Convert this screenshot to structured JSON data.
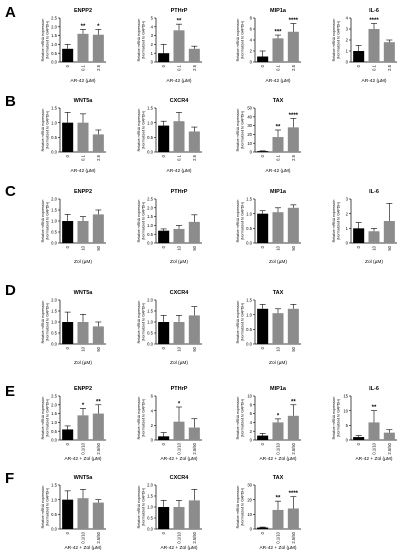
{
  "bar_colors": {
    "control": "#000000",
    "treated": "#8c8c8c",
    "row_c_third": "#8c8c8c"
  },
  "panel_labels": [
    "A",
    "B",
    "C",
    "D",
    "E",
    "F"
  ],
  "ylabel_line1": "Relative mRNA expression",
  "ylabel_line2": "(Normalized to GAPDH)",
  "chart_data": [
    {
      "type": "bar",
      "panel": "A",
      "title": "ENPP2",
      "categories": [
        "0",
        "0.1",
        "2.5"
      ],
      "values": [
        0.75,
        1.6,
        1.55
      ],
      "errors": [
        0.25,
        0.25,
        0.3
      ],
      "significance": [
        "",
        "**",
        "*"
      ],
      "xlabel": "AR-42 (µM)",
      "ylim": [
        0,
        2.5
      ],
      "yticks": [
        "0.0",
        "0.5",
        "1.0",
        "1.5",
        "2.0",
        "2.5"
      ],
      "colors": [
        "control",
        "treated",
        "treated"
      ]
    },
    {
      "type": "bar",
      "panel": "A",
      "title": "PTHrP",
      "categories": [
        "0",
        "0.1",
        "2.5"
      ],
      "values": [
        1.0,
        3.6,
        1.5
      ],
      "errors": [
        1.0,
        0.7,
        0.3
      ],
      "significance": [
        "",
        "**",
        ""
      ],
      "xlabel": "AR-42 (µM)",
      "ylim": [
        0,
        5
      ],
      "yticks": [
        "0",
        "1",
        "2",
        "3",
        "4",
        "5"
      ],
      "colors": [
        "control",
        "treated",
        "treated"
      ]
    },
    {
      "type": "bar",
      "panel": "A",
      "title": "MIP1a",
      "categories": [
        "0",
        "0.1",
        "2.5"
      ],
      "values": [
        1.0,
        4.3,
        5.5
      ],
      "errors": [
        1.0,
        0.6,
        1.5
      ],
      "significance": [
        "",
        "***",
        "****"
      ],
      "xlabel": "AR-42 (µM)",
      "ylim": [
        0,
        8
      ],
      "yticks": [
        "0",
        "2",
        "4",
        "6",
        "8"
      ],
      "colors": [
        "control",
        "treated",
        "treated"
      ]
    },
    {
      "type": "bar",
      "panel": "A",
      "title": "IL-6",
      "categories": [
        "0",
        "0.1",
        "2.5"
      ],
      "values": [
        1.0,
        3.0,
        1.8
      ],
      "errors": [
        0.5,
        0.5,
        0.2
      ],
      "significance": [
        "",
        "****",
        ""
      ],
      "xlabel": "AR-42 (µM)",
      "ylim": [
        0,
        4
      ],
      "yticks": [
        "0",
        "1",
        "2",
        "3",
        "4"
      ],
      "colors": [
        "control",
        "treated",
        "treated"
      ]
    },
    {
      "type": "bar",
      "panel": "B",
      "title": "WNT5a",
      "categories": [
        "0",
        "0.1",
        "2.5"
      ],
      "values": [
        1.0,
        1.0,
        0.6
      ],
      "errors": [
        0.35,
        0.3,
        0.15
      ],
      "significance": [
        "",
        "",
        ""
      ],
      "xlabel": "AR-42 (µM)",
      "ylim": [
        0,
        1.5
      ],
      "yticks": [
        "0.0",
        "0.5",
        "1.0",
        "1.5"
      ],
      "colors": [
        "control",
        "treated",
        "treated"
      ]
    },
    {
      "type": "bar",
      "panel": "B",
      "title": "CXCR4",
      "categories": [
        "0",
        "0.1",
        "2.5"
      ],
      "values": [
        0.9,
        1.05,
        0.7
      ],
      "errors": [
        0.15,
        0.3,
        0.15
      ],
      "significance": [
        "",
        "",
        ""
      ],
      "xlabel": "AR-42 (µM)",
      "ylim": [
        0,
        1.5
      ],
      "yticks": [
        "0.0",
        "0.5",
        "1.0",
        "1.5"
      ],
      "colors": [
        "control",
        "treated",
        "treated"
      ]
    },
    {
      "type": "bar",
      "panel": "B",
      "title": "TAX",
      "categories": [
        "0",
        "0.1",
        "2.5"
      ],
      "values": [
        1.0,
        17,
        28
      ],
      "errors": [
        0.3,
        8,
        10
      ],
      "significance": [
        "",
        "**",
        "****"
      ],
      "xlabel": "AR-42 (µM)",
      "ylim": [
        0,
        50
      ],
      "yticks": [
        "0",
        "10",
        "20",
        "30",
        "40",
        "50"
      ],
      "colors": [
        "control",
        "treated",
        "treated"
      ]
    },
    {
      "type": "bar",
      "panel": "C",
      "title": "ENPP2",
      "categories": [
        "0",
        "10",
        "50"
      ],
      "values": [
        1.0,
        1.0,
        1.3
      ],
      "errors": [
        0.3,
        0.2,
        0.2
      ],
      "significance": [
        "",
        "",
        ""
      ],
      "xlabel": "Zol (µM)",
      "ylim": [
        0,
        2.0
      ],
      "yticks": [
        "0.0",
        "0.5",
        "1.0",
        "1.5",
        "2.0"
      ],
      "colors": [
        "control",
        "treated",
        "row_c_third"
      ]
    },
    {
      "type": "bar",
      "panel": "C",
      "title": "PTHrP",
      "categories": [
        "0",
        "10",
        "50"
      ],
      "values": [
        0.7,
        0.8,
        1.2
      ],
      "errors": [
        0.1,
        0.2,
        0.4
      ],
      "significance": [
        "",
        "",
        ""
      ],
      "xlabel": "Zol (µM)",
      "ylim": [
        0,
        2.5
      ],
      "yticks": [
        "0.0",
        "0.5",
        "1.0",
        "1.5",
        "2.0",
        "2.5"
      ],
      "colors": [
        "control",
        "treated",
        "row_c_third"
      ]
    },
    {
      "type": "bar",
      "panel": "C",
      "title": "MIP1a",
      "categories": [
        "0",
        "10",
        "50"
      ],
      "values": [
        1.0,
        1.05,
        1.2
      ],
      "errors": [
        0.1,
        0.15,
        0.1
      ],
      "significance": [
        "",
        "",
        ""
      ],
      "xlabel": "Zol (µM)",
      "ylim": [
        0,
        1.5
      ],
      "yticks": [
        "0.0",
        "0.5",
        "1.0",
        "1.5"
      ],
      "colors": [
        "control",
        "treated",
        "row_c_third"
      ]
    },
    {
      "type": "bar",
      "panel": "C",
      "title": "IL-6",
      "categories": [
        "0",
        "10",
        "50"
      ],
      "values": [
        1.0,
        0.8,
        1.5
      ],
      "errors": [
        0.4,
        0.2,
        1.2
      ],
      "significance": [
        "",
        "",
        ""
      ],
      "xlabel": "Zol (µM)",
      "ylim": [
        0,
        3
      ],
      "yticks": [
        "0",
        "1",
        "2",
        "3"
      ],
      "colors": [
        "control",
        "treated",
        "row_c_third"
      ]
    },
    {
      "type": "bar",
      "panel": "D",
      "title": "WNT5a",
      "categories": [
        "0",
        "10",
        "50"
      ],
      "values": [
        1.0,
        1.0,
        0.8
      ],
      "errors": [
        0.45,
        0.35,
        0.2
      ],
      "significance": [
        "",
        "",
        ""
      ],
      "xlabel": "Zol (µM)",
      "ylim": [
        0,
        2.0
      ],
      "yticks": [
        "0.0",
        "0.5",
        "1.0",
        "1.5",
        "2.0"
      ],
      "colors": [
        "control",
        "treated",
        "treated"
      ]
    },
    {
      "type": "bar",
      "panel": "D",
      "title": "CXCR4",
      "categories": [
        "0",
        "10",
        "50"
      ],
      "values": [
        1.0,
        1.0,
        1.3
      ],
      "errors": [
        0.3,
        0.3,
        0.4
      ],
      "significance": [
        "",
        "",
        ""
      ],
      "xlabel": "Zol (µM)",
      "ylim": [
        0,
        2.0
      ],
      "yticks": [
        "0.0",
        "0.5",
        "1.0",
        "1.5",
        "2.0"
      ],
      "colors": [
        "control",
        "treated",
        "treated"
      ]
    },
    {
      "type": "bar",
      "panel": "D",
      "title": "TAX",
      "categories": [
        "0",
        "10",
        "50"
      ],
      "values": [
        1.2,
        1.05,
        1.2
      ],
      "errors": [
        0.15,
        0.15,
        0.15
      ],
      "significance": [
        "",
        "",
        ""
      ],
      "xlabel": "Zol (µM)",
      "ylim": [
        0,
        1.5
      ],
      "yticks": [
        "0.0",
        "0.5",
        "1.0",
        "1.5"
      ],
      "colors": [
        "control",
        "treated",
        "treated"
      ]
    },
    {
      "type": "bar",
      "panel": "E",
      "title": "ENPP2",
      "categories": [
        "0",
        "0.1/10",
        "2.5/50"
      ],
      "values": [
        0.6,
        1.4,
        1.5
      ],
      "errors": [
        0.2,
        0.4,
        0.5
      ],
      "significance": [
        "",
        "*",
        "**"
      ],
      "xlabel": "AR-42 + Zol (µM)",
      "ylim": [
        0,
        2.5
      ],
      "yticks": [
        "0.0",
        "0.5",
        "1.0",
        "1.5",
        "2.0",
        "2.5"
      ],
      "colors": [
        "control",
        "treated",
        "treated"
      ]
    },
    {
      "type": "bar",
      "panel": "E",
      "title": "PTHrP",
      "categories": [
        "0",
        "0.1/10",
        "2.5/50"
      ],
      "values": [
        0.5,
        2.5,
        1.7
      ],
      "errors": [
        0.5,
        2.0,
        1.2
      ],
      "significance": [
        "",
        "*",
        ""
      ],
      "xlabel": "AR-42 + Zol (µM)",
      "ylim": [
        0,
        6
      ],
      "yticks": [
        "0",
        "2",
        "4",
        "6"
      ],
      "colors": [
        "control",
        "treated",
        "treated"
      ]
    },
    {
      "type": "bar",
      "panel": "E",
      "title": "MIP1a",
      "categories": [
        "0",
        "0.1/10",
        "2.5/50"
      ],
      "values": [
        1.0,
        4.0,
        5.5
      ],
      "errors": [
        0.5,
        0.8,
        2.5
      ],
      "significance": [
        "",
        "*",
        "**"
      ],
      "xlabel": "AR-42 + Zol (µM)",
      "ylim": [
        0,
        10
      ],
      "yticks": [
        "0",
        "2",
        "4",
        "6",
        "8",
        "10"
      ],
      "colors": [
        "control",
        "treated",
        "treated"
      ]
    },
    {
      "type": "bar",
      "panel": "E",
      "title": "IL-6",
      "categories": [
        "0",
        "0.1/10",
        "2.5/50"
      ],
      "values": [
        1.0,
        6.0,
        2.5
      ],
      "errors": [
        0.5,
        4.0,
        1.0
      ],
      "significance": [
        "",
        "**",
        ""
      ],
      "xlabel": "AR-42 + Zol (µM)",
      "ylim": [
        0,
        15
      ],
      "yticks": [
        "0",
        "5",
        "10",
        "15"
      ],
      "colors": [
        "control",
        "treated",
        "treated"
      ]
    },
    {
      "type": "bar",
      "panel": "F",
      "title": "WNT5a",
      "categories": [
        "0",
        "0.1/10",
        "2.5/50"
      ],
      "values": [
        1.0,
        1.05,
        0.9
      ],
      "errors": [
        0.3,
        0.3,
        0.1
      ],
      "significance": [
        "",
        "",
        ""
      ],
      "xlabel": "AR-42 + Zol (µM)",
      "ylim": [
        0,
        1.5
      ],
      "yticks": [
        "0.0",
        "0.5",
        "1.0",
        "1.5"
      ],
      "colors": [
        "control",
        "treated",
        "treated"
      ]
    },
    {
      "type": "bar",
      "panel": "F",
      "title": "CXCR4",
      "categories": [
        "0",
        "0.1/10",
        "2.5/50"
      ],
      "values": [
        1.0,
        1.0,
        1.3
      ],
      "errors": [
        0.3,
        0.3,
        0.5
      ],
      "significance": [
        "",
        "",
        ""
      ],
      "xlabel": "AR-42 + Zol (µM)",
      "ylim": [
        0,
        2.0
      ],
      "yticks": [
        "0.0",
        "0.5",
        "1.0",
        "1.5",
        "2.0"
      ],
      "colors": [
        "control",
        "treated",
        "treated"
      ]
    },
    {
      "type": "bar",
      "panel": "F",
      "title": "TAX",
      "categories": [
        "0",
        "0.1/10",
        "2.5/50"
      ],
      "values": [
        1.0,
        13,
        14
      ],
      "errors": [
        0.3,
        6,
        8
      ],
      "significance": [
        "",
        "**",
        "****"
      ],
      "xlabel": "AR-42 + Zol (µM)",
      "ylim": [
        0,
        30
      ],
      "yticks": [
        "0",
        "10",
        "20",
        "30"
      ],
      "colors": [
        "control",
        "treated",
        "treated"
      ]
    }
  ]
}
